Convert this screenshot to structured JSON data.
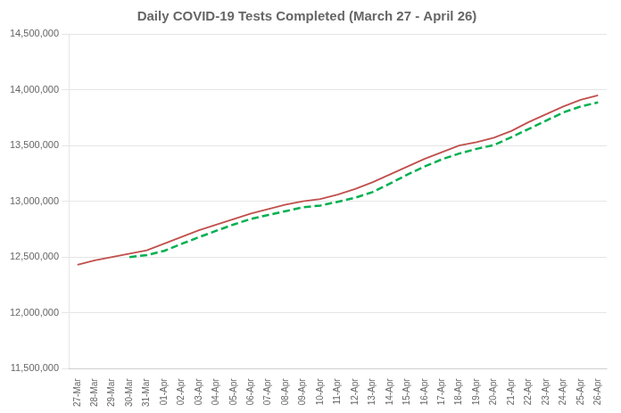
{
  "chart_data": {
    "type": "line",
    "title": "Daily COVID-19 Tests Completed (March 27 - April 26)",
    "categories": [
      "27-Mar",
      "28-Mar",
      "29-Mar",
      "30-Mar",
      "31-Mar",
      "01-Apr",
      "02-Apr",
      "03-Apr",
      "04-Apr",
      "05-Apr",
      "06-Apr",
      "07-Apr",
      "08-Apr",
      "09-Apr",
      "10-Apr",
      "11-Apr",
      "12-Apr",
      "13-Apr",
      "14-Apr",
      "15-Apr",
      "16-Apr",
      "17-Apr",
      "18-Apr",
      "19-Apr",
      "20-Apr",
      "21-Apr",
      "22-Apr",
      "23-Apr",
      "24-Apr",
      "25-Apr",
      "26-Apr"
    ],
    "series": [
      {
        "color": "#c0504d",
        "line_style": "solid",
        "marker": "none",
        "values": [
          12430000,
          12470000,
          12500000,
          12530000,
          12560000,
          12620000,
          12680000,
          12740000,
          12790000,
          12840000,
          12890000,
          12930000,
          12970000,
          13000000,
          13020000,
          13060000,
          13110000,
          13170000,
          13240000,
          13310000,
          13380000,
          13440000,
          13500000,
          13530000,
          13570000,
          13630000,
          13710000,
          13780000,
          13850000,
          13910000,
          13950000
        ]
      },
      {
        "color": "#00b050",
        "line_style": "dashed",
        "marker": "none",
        "values": [
          null,
          null,
          null,
          12500000,
          12518000,
          12556000,
          12618000,
          12678000,
          12736000,
          12792000,
          12842000,
          12878000,
          12912000,
          12946000,
          12962000,
          12996000,
          13032000,
          13082000,
          13158000,
          13238000,
          13312000,
          13376000,
          13428000,
          13470000,
          13504000,
          13574000,
          13648000,
          13722000,
          13796000,
          13850000,
          13886000
        ]
      }
    ],
    "ylim": [
      11500000,
      14500000
    ],
    "yticks": [
      {
        "value": 11500000,
        "label": "11,500,000"
      },
      {
        "value": 12000000,
        "label": "12,000,000"
      },
      {
        "value": 12500000,
        "label": "12,500,000"
      },
      {
        "value": 13000000,
        "label": "13,000,000"
      },
      {
        "value": 13500000,
        "label": "13,500,000"
      },
      {
        "value": 14000000,
        "label": "14,000,000"
      },
      {
        "value": 14500000,
        "label": "14,500,000"
      }
    ],
    "grid": "y"
  }
}
